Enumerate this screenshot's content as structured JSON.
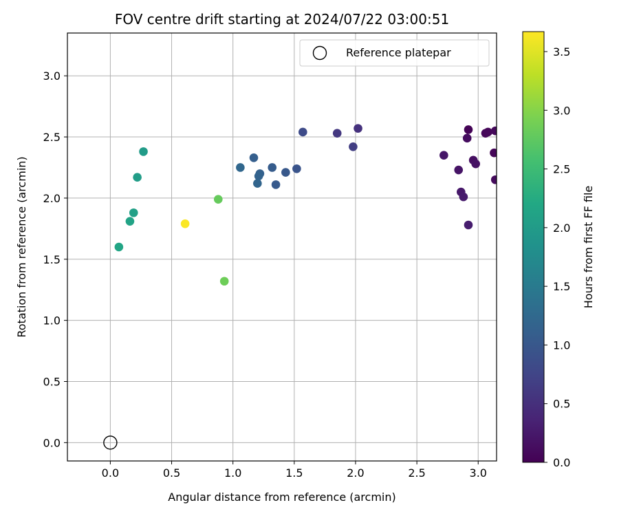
{
  "chart_data": {
    "type": "scatter",
    "title": "FOV centre drift starting at 2024/07/22 03:00:51",
    "xlabel": "Angular distance from reference (arcmin)",
    "ylabel": "Rotation from reference (arcmin)",
    "xlim": [
      -0.35,
      3.15
    ],
    "ylim": [
      -0.15,
      3.35
    ],
    "xticks": [
      0.0,
      0.5,
      1.0,
      1.5,
      2.0,
      2.5,
      3.0
    ],
    "xtick_labels": [
      "0.0",
      "0.5",
      "1.0",
      "1.5",
      "2.0",
      "2.5",
      "3.0"
    ],
    "yticks": [
      0.0,
      0.5,
      1.0,
      1.5,
      2.0,
      2.5,
      3.0
    ],
    "ytick_labels": [
      "0.0",
      "0.5",
      "1.0",
      "1.5",
      "2.0",
      "2.5",
      "3.0"
    ],
    "grid": true,
    "legend": {
      "position": "top-right",
      "label": "Reference platepar"
    },
    "reference_point": {
      "x": 0.0,
      "y": 0.0
    },
    "colorbar": {
      "label": "Hours from first FF file",
      "range": [
        0.0,
        3.67
      ],
      "ticks": [
        0.0,
        0.5,
        1.0,
        1.5,
        2.0,
        2.5,
        3.0,
        3.5
      ],
      "tick_labels": [
        "0.0",
        "0.5",
        "1.0",
        "1.5",
        "2.0",
        "2.5",
        "3.0",
        "3.5"
      ],
      "colormap": "viridis"
    },
    "points": [
      {
        "x": 2.92,
        "y": 2.56,
        "c": 0.02
      },
      {
        "x": 3.06,
        "y": 2.53,
        "c": 0.04
      },
      {
        "x": 3.08,
        "y": 2.54,
        "c": 0.06
      },
      {
        "x": 3.14,
        "y": 2.55,
        "c": 0.08
      },
      {
        "x": 3.13,
        "y": 2.37,
        "c": 0.05
      },
      {
        "x": 3.14,
        "y": 2.15,
        "c": 0.1
      },
      {
        "x": 2.91,
        "y": 2.49,
        "c": 0.12
      },
      {
        "x": 2.96,
        "y": 2.31,
        "c": 0.15
      },
      {
        "x": 2.98,
        "y": 2.28,
        "c": 0.18
      },
      {
        "x": 2.84,
        "y": 2.23,
        "c": 0.2
      },
      {
        "x": 2.72,
        "y": 2.35,
        "c": 0.22
      },
      {
        "x": 2.86,
        "y": 2.05,
        "c": 0.25
      },
      {
        "x": 2.88,
        "y": 2.01,
        "c": 0.27
      },
      {
        "x": 2.92,
        "y": 1.78,
        "c": 0.29
      },
      {
        "x": 2.02,
        "y": 2.57,
        "c": 0.52
      },
      {
        "x": 1.85,
        "y": 2.53,
        "c": 0.6
      },
      {
        "x": 1.98,
        "y": 2.42,
        "c": 0.66
      },
      {
        "x": 1.57,
        "y": 2.54,
        "c": 0.83
      },
      {
        "x": 1.52,
        "y": 2.24,
        "c": 0.95
      },
      {
        "x": 1.43,
        "y": 2.21,
        "c": 1.0
      },
      {
        "x": 1.35,
        "y": 2.11,
        "c": 1.03
      },
      {
        "x": 1.32,
        "y": 2.25,
        "c": 1.06
      },
      {
        "x": 1.17,
        "y": 2.33,
        "c": 1.1
      },
      {
        "x": 1.22,
        "y": 2.2,
        "c": 1.13
      },
      {
        "x": 1.21,
        "y": 2.18,
        "c": 1.16
      },
      {
        "x": 1.2,
        "y": 2.12,
        "c": 1.19
      },
      {
        "x": 1.06,
        "y": 2.25,
        "c": 1.22
      },
      {
        "x": 0.27,
        "y": 2.38,
        "c": 2.0
      },
      {
        "x": 0.22,
        "y": 2.17,
        "c": 2.03
      },
      {
        "x": 0.19,
        "y": 1.88,
        "c": 2.07
      },
      {
        "x": 0.16,
        "y": 1.81,
        "c": 2.12
      },
      {
        "x": 0.07,
        "y": 1.6,
        "c": 2.15
      },
      {
        "x": 0.88,
        "y": 1.99,
        "c": 2.8
      },
      {
        "x": 0.93,
        "y": 1.32,
        "c": 2.85
      },
      {
        "x": 0.61,
        "y": 1.79,
        "c": 3.65
      }
    ]
  }
}
